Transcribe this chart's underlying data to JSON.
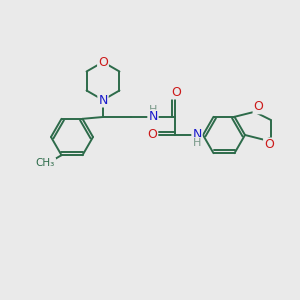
{
  "bg_color": "#eaeaea",
  "bond_color": "#2d6b4a",
  "atom_colors": {
    "N": "#1a1acc",
    "O": "#cc1a1a",
    "H": "#7a9a8a",
    "C": "#2d6b4a"
  },
  "lw": 1.4,
  "figsize": [
    3.0,
    3.0
  ],
  "dpi": 100
}
